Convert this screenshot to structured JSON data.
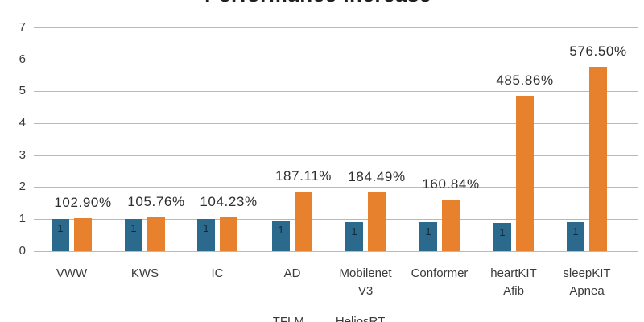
{
  "title": "Performance Increase",
  "colors": {
    "tflm_blue": "#2B6A8C",
    "heliosrt_orange": "#E8812D",
    "gridline": "#B9B9B9",
    "axis_text": "#3A3A3A",
    "data_label_text": "#2E2E2E"
  },
  "y_axis": {
    "ticks": [
      "0",
      "1",
      "2",
      "3",
      "4",
      "5",
      "6",
      "7"
    ],
    "min": 0,
    "max": 7
  },
  "legend": {
    "items": [
      {
        "label": "TFLM",
        "color": "#2B6A8C"
      },
      {
        "label": "HeliosRT",
        "color": "#E8812D"
      }
    ]
  },
  "chart_data": {
    "type": "bar",
    "title": "Performance Increase",
    "categories": [
      "VWW",
      "KWS",
      "IC",
      "AD",
      "Mobilenet V3",
      "Conformer",
      "heartKIT Afib",
      "sleepKIT Apnea"
    ],
    "display_categories": [
      "VWW",
      "KWS",
      "IC",
      "AD",
      "Mobilenet\nV3",
      "Conformer",
      "heartKIT\nAfib",
      "sleepKIT\nApnea"
    ],
    "series": [
      {
        "name": "TFLM",
        "color": "#2B6A8C",
        "values": [
          1,
          1,
          1,
          1,
          1,
          1,
          1,
          1
        ],
        "bar_labels": [
          "1",
          "1",
          "1",
          "1",
          "1",
          "1",
          "1",
          "1"
        ],
        "rendered_heights": [
          1.0,
          1.0,
          1.0,
          0.95,
          0.9,
          0.9,
          0.88,
          0.91
        ]
      },
      {
        "name": "HeliosRT",
        "color": "#E8812D",
        "values": [
          1.029,
          1.0576,
          1.0423,
          1.8711,
          1.8449,
          1.6084,
          4.8586,
          5.765
        ],
        "data_labels": [
          "102.90%",
          "105.76%",
          "104.23%",
          "187.11%",
          "184.49%",
          "160.84%",
          "485.86%",
          "576.50%"
        ]
      }
    ],
    "ylim": [
      0,
      7
    ],
    "grid": true,
    "legend_position": "bottom",
    "data_label_format": "percent"
  }
}
